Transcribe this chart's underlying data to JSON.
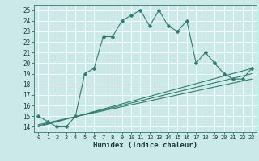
{
  "xlabel": "Humidex (Indice chaleur)",
  "bg_color": "#cce9e9",
  "grid_color": "#ffffff",
  "line_color": "#2e7d6e",
  "xlim": [
    -0.5,
    23.5
  ],
  "ylim": [
    13.5,
    25.5
  ],
  "yticks": [
    14,
    15,
    16,
    17,
    18,
    19,
    20,
    21,
    22,
    23,
    24,
    25
  ],
  "xticks": [
    0,
    1,
    2,
    3,
    4,
    5,
    6,
    7,
    8,
    9,
    10,
    11,
    12,
    13,
    14,
    15,
    16,
    17,
    18,
    19,
    20,
    21,
    22,
    23
  ],
  "series": [
    {
      "x": [
        0,
        1,
        2,
        3,
        4,
        5,
        6,
        7,
        8,
        9,
        10,
        11,
        12,
        13,
        14,
        15,
        16,
        17,
        18,
        19,
        20,
        21,
        22,
        23
      ],
      "y": [
        15.0,
        14.5,
        14.0,
        14.0,
        15.0,
        19.0,
        19.5,
        22.5,
        22.5,
        24.0,
        24.5,
        25.0,
        23.5,
        25.0,
        23.5,
        23.0,
        24.0,
        20.0,
        21.0,
        20.0,
        19.0,
        18.5,
        18.5,
        19.5
      ],
      "marker": "D",
      "markersize": 2.5,
      "linewidth": 0.8,
      "has_marker": true
    },
    {
      "x": [
        0,
        23
      ],
      "y": [
        14.0,
        19.5
      ],
      "marker": null,
      "markersize": 0,
      "linewidth": 0.8,
      "has_marker": false
    },
    {
      "x": [
        0,
        23
      ],
      "y": [
        14.1,
        19.0
      ],
      "marker": null,
      "markersize": 0,
      "linewidth": 0.8,
      "has_marker": false
    },
    {
      "x": [
        0,
        23
      ],
      "y": [
        14.2,
        18.5
      ],
      "marker": null,
      "markersize": 0,
      "linewidth": 0.8,
      "has_marker": false
    }
  ]
}
